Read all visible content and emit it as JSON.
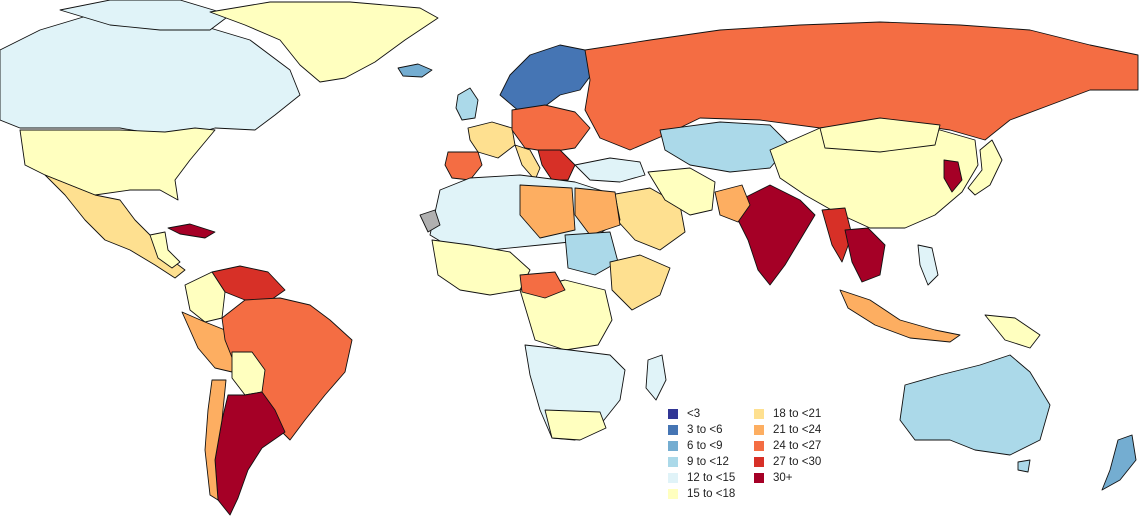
{
  "legend": {
    "items": [
      {
        "label": "<3",
        "color": "#313695"
      },
      {
        "label": "3 to <6",
        "color": "#4575b4"
      },
      {
        "label": "6 to <9",
        "color": "#74add1"
      },
      {
        "label": "9 to <12",
        "color": "#abd9e9"
      },
      {
        "label": "12 to <15",
        "color": "#e0f3f8"
      },
      {
        "label": "15 to <18",
        "color": "#ffffbf"
      },
      {
        "label": "18 to <21",
        "color": "#fee090"
      },
      {
        "label": "21 to <24",
        "color": "#fdae61"
      },
      {
        "label": "24 to <27",
        "color": "#f46d43"
      },
      {
        "label": "27 to <30",
        "color": "#d73027"
      },
      {
        "label": "30+",
        "color": "#a50026"
      }
    ]
  },
  "no_data_color": "#b0b0b0"
}
